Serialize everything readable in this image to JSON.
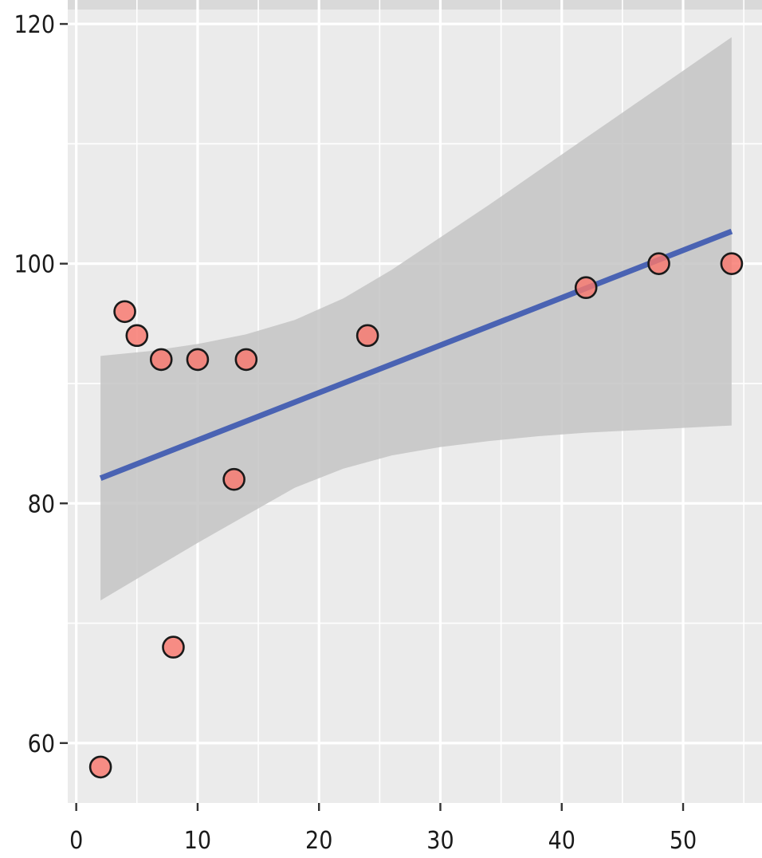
{
  "chart_data": {
    "type": "scatter",
    "title": "",
    "xlabel": "",
    "ylabel": "",
    "xlim": [
      -0.7,
      56.5
    ],
    "ylim": [
      55,
      122
    ],
    "x_ticks": [
      0,
      10,
      20,
      30,
      40,
      50
    ],
    "x_tick_labels": [
      "0",
      "10",
      "20",
      "30",
      "40",
      "50"
    ],
    "y_ticks": [
      60,
      80,
      100,
      120
    ],
    "y_tick_labels": [
      "60",
      "80",
      "100",
      "120"
    ],
    "grid": true,
    "points": [
      {
        "x": 2,
        "y": 58
      },
      {
        "x": 4,
        "y": 96
      },
      {
        "x": 5,
        "y": 94
      },
      {
        "x": 7,
        "y": 92
      },
      {
        "x": 8,
        "y": 68
      },
      {
        "x": 10,
        "y": 92
      },
      {
        "x": 13,
        "y": 82
      },
      {
        "x": 14,
        "y": 92
      },
      {
        "x": 24,
        "y": 94
      },
      {
        "x": 42,
        "y": 98
      },
      {
        "x": 48,
        "y": 100
      },
      {
        "x": 54,
        "y": 100
      }
    ],
    "trend_line": {
      "x": [
        2,
        54
      ],
      "y": [
        82.1,
        102.7
      ]
    },
    "confidence_band": {
      "x": [
        2,
        6,
        10,
        14,
        18,
        22,
        26,
        30,
        34,
        38,
        42,
        46,
        50,
        54
      ],
      "upper": [
        92.3,
        92.7,
        93.3,
        94.1,
        95.3,
        97.1,
        99.5,
        102.2,
        104.9,
        107.7,
        110.5,
        113.3,
        116.1,
        118.9
      ],
      "lower": [
        71.9,
        74.3,
        76.7,
        79.0,
        81.3,
        82.9,
        84.0,
        84.7,
        85.2,
        85.6,
        85.9,
        86.1,
        86.3,
        86.5
      ]
    },
    "colors": {
      "point_fill": "#f8766d",
      "point_stroke": "#1a1a1a",
      "trend_line": "#4a63b3",
      "band": "#c4c4c4",
      "panel": "#ebebeb",
      "grid": "#ffffff"
    }
  }
}
